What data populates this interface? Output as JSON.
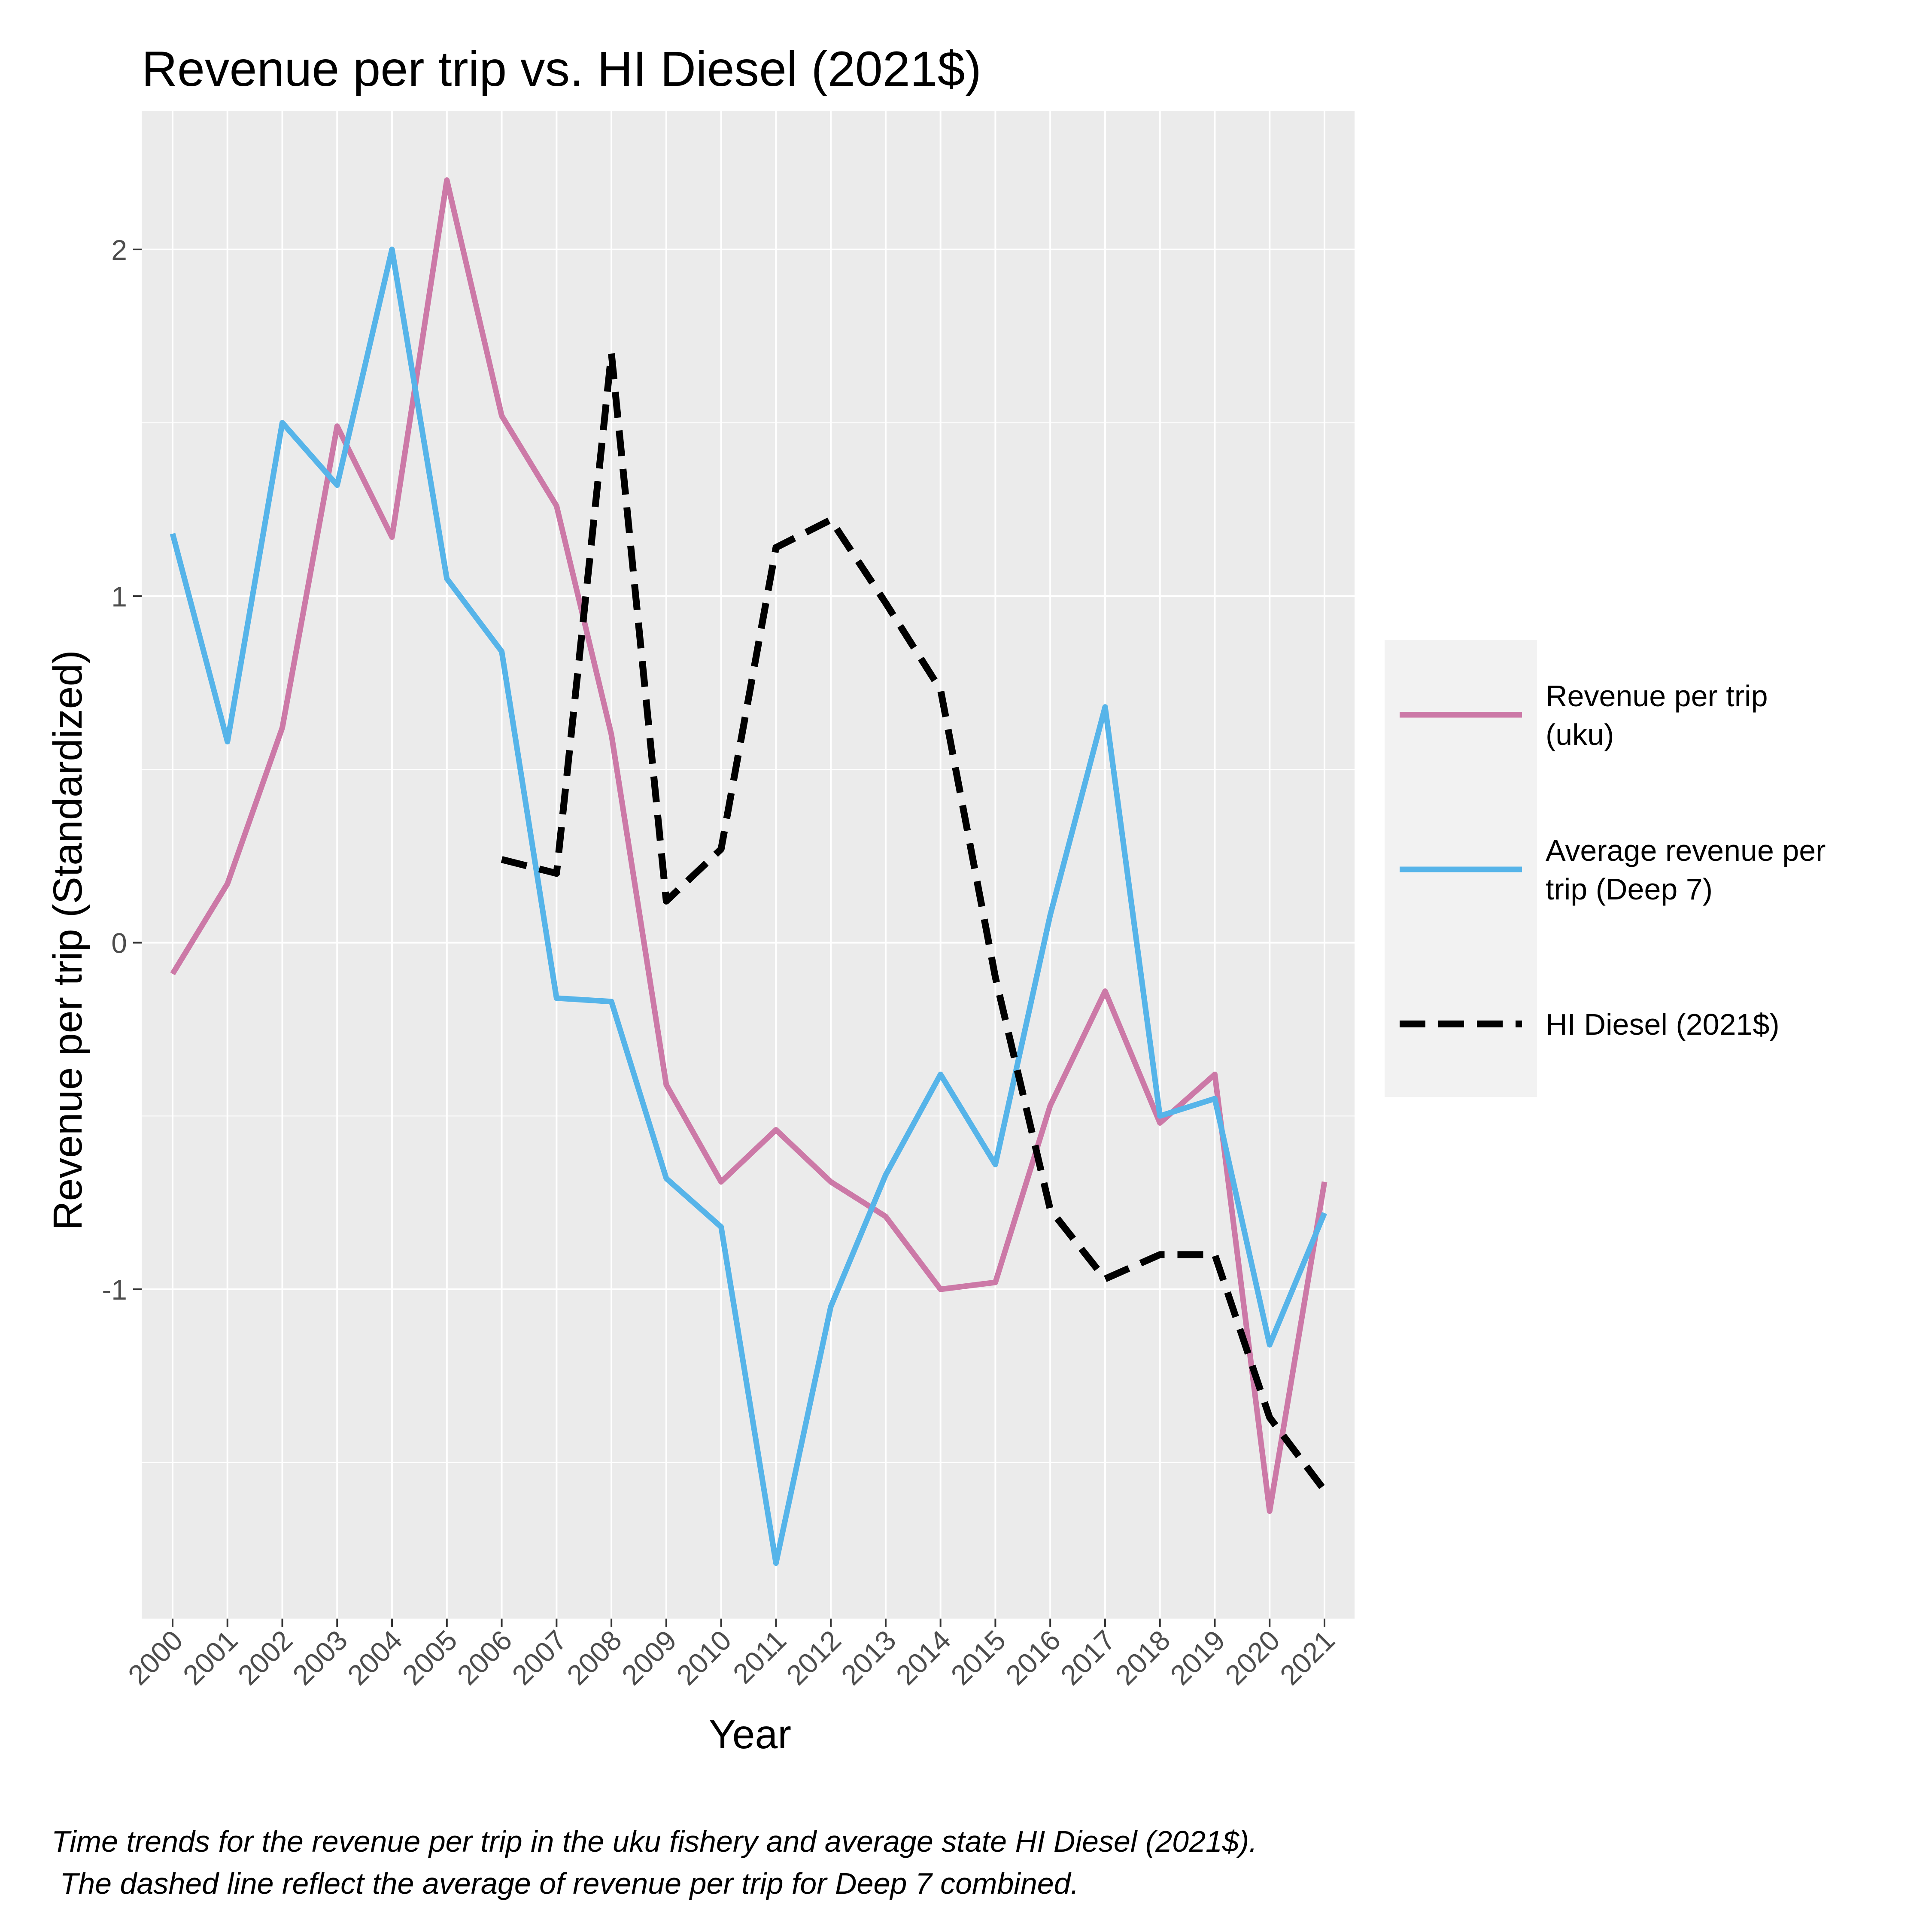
{
  "chart_data": {
    "type": "line",
    "title": "Revenue per trip vs. HI Diesel (2021$)",
    "xlabel": "Year",
    "ylabel": "Revenue per trip (Standardized)",
    "x": [
      "2000",
      "2001",
      "2002",
      "2003",
      "2004",
      "2005",
      "2006",
      "2007",
      "2008",
      "2009",
      "2010",
      "2011",
      "2012",
      "2013",
      "2014",
      "2015",
      "2016",
      "2017",
      "2018",
      "2019",
      "2020",
      "2021"
    ],
    "yticks": [
      -1,
      0,
      1,
      2
    ],
    "ytick_labels": [
      "-1",
      "0",
      "1",
      "2"
    ],
    "ylim": [
      -1.95,
      2.4
    ],
    "grid": true,
    "legend_position": "right",
    "series": [
      {
        "name": "Revenue per trip\n(uku)",
        "color": "#cc79a7",
        "dashed": false,
        "values": [
          -0.09,
          0.17,
          0.62,
          1.49,
          1.17,
          2.2,
          1.52,
          1.26,
          0.6,
          -0.41,
          -0.69,
          -0.54,
          -0.69,
          -0.79,
          -1.0,
          -0.98,
          -0.47,
          -0.14,
          -0.52,
          -0.38,
          -1.64,
          -0.69
        ]
      },
      {
        "name": "Average revenue per\ntrip (Deep 7)",
        "color": "#56b4e9",
        "dashed": false,
        "values": [
          1.18,
          0.58,
          1.5,
          1.32,
          2.0,
          1.05,
          0.84,
          -0.16,
          -0.17,
          -0.68,
          -0.82,
          -1.79,
          -1.05,
          -0.67,
          -0.38,
          -0.64,
          0.08,
          0.68,
          -0.5,
          -0.45,
          -1.16,
          -0.78
        ]
      },
      {
        "name": "HI Diesel (2021$)",
        "color": "#000000",
        "dashed": true,
        "values": [
          null,
          null,
          null,
          null,
          null,
          null,
          0.24,
          0.2,
          1.7,
          0.12,
          0.27,
          1.14,
          1.22,
          0.98,
          0.73,
          -0.1,
          -0.77,
          -0.97,
          -0.9,
          -0.9,
          -1.37,
          -1.58
        ]
      }
    ]
  },
  "caption": {
    "line1": "Time trends for the revenue per trip in the uku fishery and average state HI Diesel (2021$).",
    "line2": " The dashed line reflect the average of revenue per trip for Deep 7 combined."
  }
}
